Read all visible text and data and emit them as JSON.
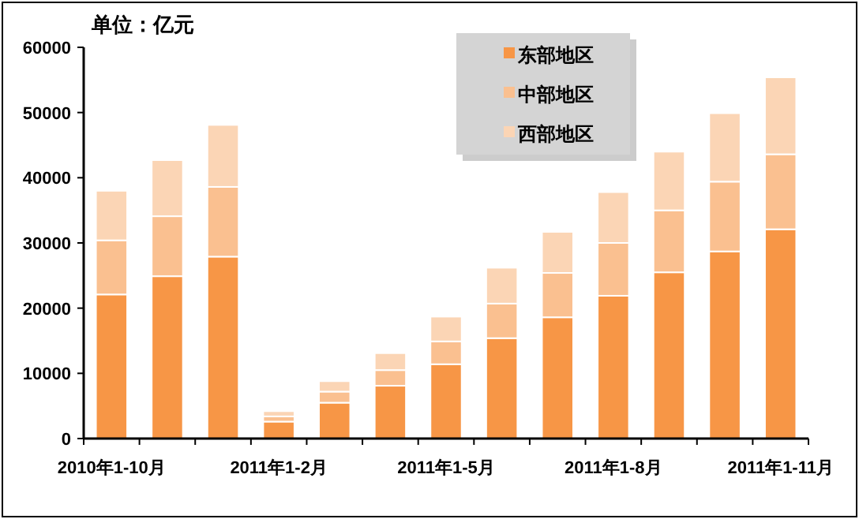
{
  "chart_data": {
    "type": "bar",
    "stacked": true,
    "title": "单位：亿元",
    "categories": [
      "2010年1-10月",
      null,
      null,
      "2011年1-2月",
      null,
      null,
      "2011年1-5月",
      null,
      null,
      "2011年1-8月",
      null,
      null,
      "2011年1-11月"
    ],
    "series": [
      {
        "name": "东部地区",
        "color": "#f79646",
        "values": [
          22100,
          24900,
          27900,
          2600,
          5500,
          8100,
          11400,
          15400,
          18600,
          21900,
          25500,
          28700,
          32100
        ]
      },
      {
        "name": "中部地区",
        "color": "#fac090",
        "values": [
          8300,
          9200,
          10700,
          800,
          1700,
          2400,
          3500,
          5300,
          6800,
          8100,
          9500,
          10700,
          11500
        ]
      },
      {
        "name": "西部地区",
        "color": "#fbd5b5",
        "values": [
          7600,
          8600,
          9500,
          800,
          1600,
          2600,
          3800,
          5500,
          6300,
          7800,
          9000,
          10500,
          11800
        ]
      }
    ],
    "ylim": [
      0,
      60000
    ],
    "yticks": [
      0,
      10000,
      20000,
      30000,
      40000,
      50000,
      60000
    ],
    "grid": false,
    "legend": "top right"
  }
}
